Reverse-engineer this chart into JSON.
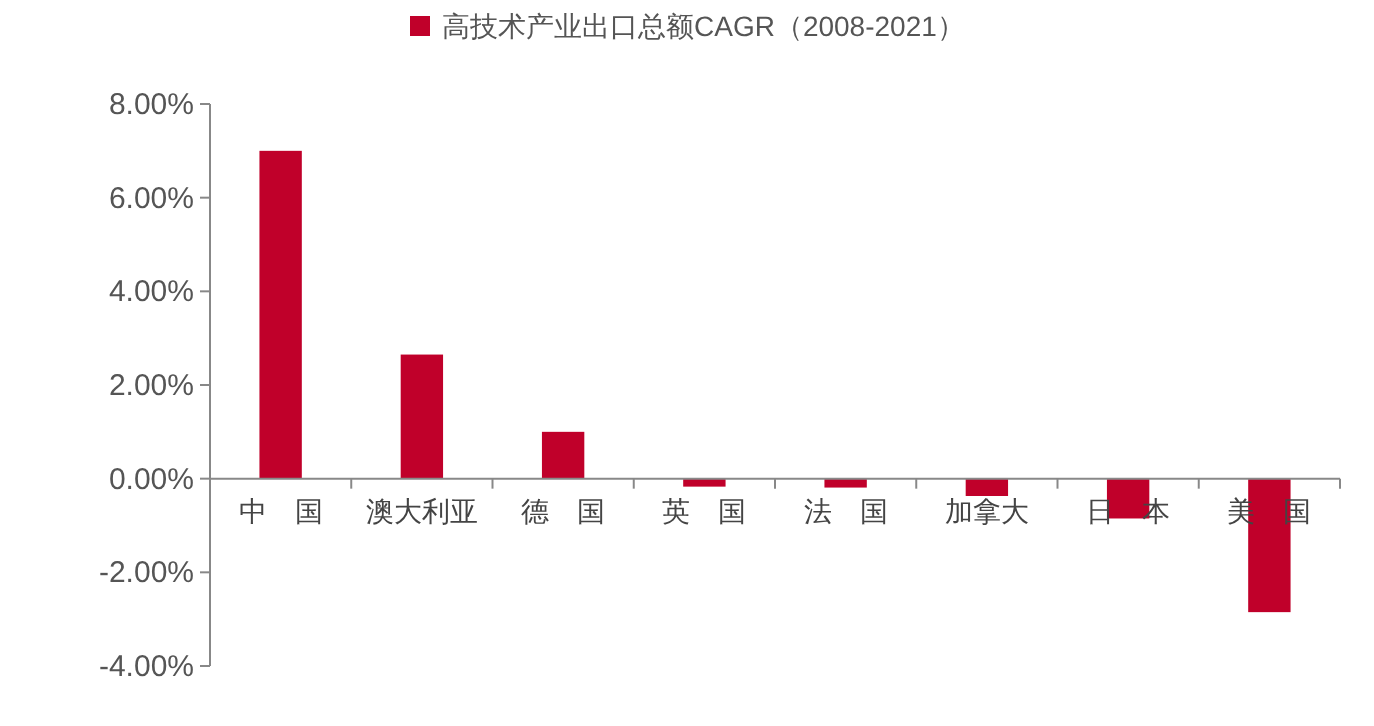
{
  "chart_data": {
    "type": "bar",
    "categories": [
      "中　国",
      "澳大利亚",
      "德　国",
      "英　国",
      "法　国",
      "加拿大",
      "日　本",
      "美　国"
    ],
    "series": [
      {
        "name": "高技术产业出口总额CAGR（2008-2021）",
        "color": "#c0002a",
        "values": [
          7.0,
          2.65,
          1.0,
          -0.17,
          -0.19,
          -0.37,
          -0.85,
          -2.85
        ]
      }
    ],
    "ylim": [
      -4,
      8
    ],
    "yticks": [
      {
        "value": -4,
        "label": "-4.00%"
      },
      {
        "value": -2,
        "label": "-2.00%"
      },
      {
        "value": 0,
        "label": "0.00%"
      },
      {
        "value": 2,
        "label": "2.00%"
      },
      {
        "value": 4,
        "label": "4.00%"
      },
      {
        "value": 6,
        "label": "6.00%"
      },
      {
        "value": 8,
        "label": "8.00%"
      }
    ],
    "grid": false,
    "legend": "top"
  }
}
